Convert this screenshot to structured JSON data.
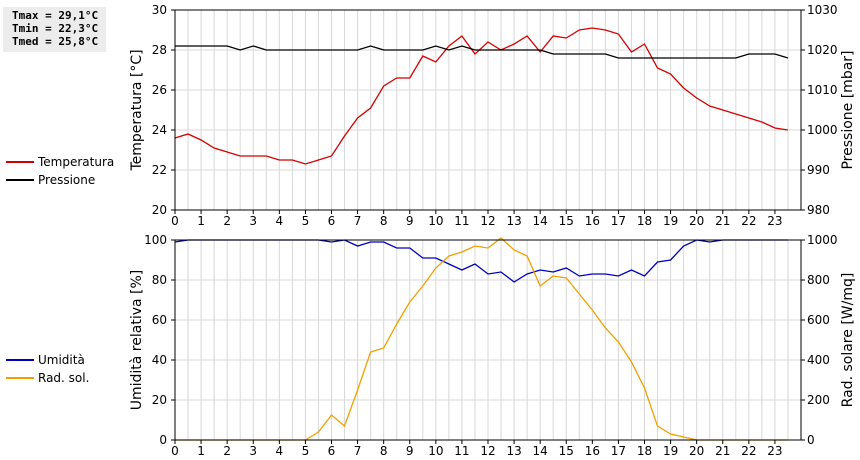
{
  "stats": {
    "tmax": "Tmax = 29,1°C",
    "tmin": "Tmin = 22,3°C",
    "tmed": "Tmed = 25,8°C"
  },
  "legend_top": [
    {
      "label": "Temperatura",
      "color": "#d40000"
    },
    {
      "label": "Pressione",
      "color": "#000000"
    }
  ],
  "legend_bottom": [
    {
      "label": "Umidità",
      "color": "#0000c0"
    },
    {
      "label": "Rad. sol.",
      "color": "#f0a000"
    }
  ],
  "chart_data": [
    {
      "type": "line",
      "ylabel_left": "Temperatura [°C]",
      "ylabel_right": "Pressione [mbar]",
      "ylim_left": [
        20,
        30
      ],
      "ylim_right": [
        980,
        1030
      ],
      "yticks_left": [
        "20",
        "22",
        "24",
        "26",
        "28",
        "30"
      ],
      "yticks_right": [
        "980",
        "990",
        "1000",
        "1010",
        "1020",
        "1030"
      ],
      "xlim": [
        0,
        24
      ],
      "xticks": [
        "0",
        "1",
        "2",
        "3",
        "4",
        "5",
        "6",
        "7",
        "8",
        "9",
        "10",
        "11",
        "12",
        "13",
        "14",
        "15",
        "16",
        "17",
        "18",
        "19",
        "20",
        "21",
        "22",
        "23"
      ],
      "grid": true,
      "series": [
        {
          "name": "Temperatura",
          "axis": "left",
          "color": "#d40000",
          "x": [
            0,
            0.5,
            1,
            1.5,
            2,
            2.5,
            3,
            3.5,
            4,
            4.5,
            5,
            5.5,
            6,
            6.5,
            7,
            7.5,
            8,
            8.5,
            9,
            9.5,
            10,
            10.5,
            11,
            11.5,
            12,
            12.5,
            13,
            13.5,
            14,
            14.5,
            15,
            15.5,
            16,
            16.5,
            17,
            17.5,
            18,
            18.5,
            19,
            19.5,
            20,
            20.5,
            21,
            21.5,
            22,
            22.5,
            23,
            23.5
          ],
          "y": [
            23.6,
            23.8,
            23.5,
            23.1,
            22.9,
            22.7,
            22.7,
            22.7,
            22.5,
            22.5,
            22.3,
            22.5,
            22.7,
            23.7,
            24.6,
            25.1,
            26.2,
            26.6,
            26.6,
            27.7,
            27.4,
            28.2,
            28.7,
            27.8,
            28.4,
            28.0,
            28.3,
            28.7,
            27.9,
            28.7,
            28.6,
            29.0,
            29.1,
            29.0,
            28.8,
            27.9,
            28.3,
            27.1,
            26.8,
            26.1,
            25.6,
            25.2,
            25.0,
            24.8,
            24.6,
            24.4,
            24.1,
            24.0
          ]
        },
        {
          "name": "Pressione",
          "axis": "right",
          "color": "#000000",
          "x": [
            0,
            0.5,
            1,
            1.5,
            2,
            2.5,
            3,
            3.5,
            4,
            4.5,
            5,
            5.5,
            6,
            6.5,
            7,
            7.5,
            8,
            8.5,
            9,
            9.5,
            10,
            10.5,
            11,
            11.5,
            12,
            12.5,
            13,
            13.5,
            14,
            14.5,
            15,
            15.5,
            16,
            16.5,
            17,
            17.5,
            18,
            18.5,
            19,
            19.5,
            20,
            20.5,
            21,
            21.5,
            22,
            22.5,
            23,
            23.5
          ],
          "y": [
            1021,
            1021,
            1021,
            1021,
            1021,
            1020,
            1021,
            1020,
            1020,
            1020,
            1020,
            1020,
            1020,
            1020,
            1020,
            1021,
            1020,
            1020,
            1020,
            1020,
            1021,
            1020,
            1021,
            1020,
            1020,
            1020,
            1020,
            1020,
            1020,
            1019,
            1019,
            1019,
            1019,
            1019,
            1018,
            1018,
            1018,
            1018,
            1018,
            1018,
            1018,
            1018,
            1018,
            1018,
            1019,
            1019,
            1019,
            1018
          ]
        }
      ]
    },
    {
      "type": "line",
      "ylabel_left": "Umidità relativa [%]",
      "ylabel_right": "Rad. solare [W/mq]",
      "ylim_left": [
        0,
        100
      ],
      "ylim_right": [
        0,
        1000
      ],
      "yticks_left": [
        "0",
        "20",
        "40",
        "60",
        "80",
        "100"
      ],
      "yticks_right": [
        "0",
        "200",
        "400",
        "600",
        "800",
        "1000"
      ],
      "xlim": [
        0,
        24
      ],
      "xticks": [
        "0",
        "1",
        "2",
        "3",
        "4",
        "5",
        "6",
        "7",
        "8",
        "9",
        "10",
        "11",
        "12",
        "13",
        "14",
        "15",
        "16",
        "17",
        "18",
        "19",
        "20",
        "21",
        "22",
        "23"
      ],
      "grid": true,
      "series": [
        {
          "name": "Umidità",
          "axis": "left",
          "color": "#0000c0",
          "x": [
            0,
            0.5,
            1,
            1.5,
            2,
            2.5,
            3,
            3.5,
            4,
            4.5,
            5,
            5.5,
            6,
            6.5,
            7,
            7.5,
            8,
            8.5,
            9,
            9.5,
            10,
            10.5,
            11,
            11.5,
            12,
            12.5,
            13,
            13.5,
            14,
            14.5,
            15,
            15.5,
            16,
            16.5,
            17,
            17.5,
            18,
            18.5,
            19,
            19.5,
            20,
            20.5,
            21,
            21.5,
            22,
            22.5,
            23,
            23.5
          ],
          "y": [
            99,
            100,
            100,
            100,
            100,
            100,
            100,
            100,
            100,
            100,
            100,
            100,
            99,
            100,
            97,
            99,
            99,
            96,
            96,
            91,
            91,
            88,
            85,
            88,
            83,
            84,
            79,
            83,
            85,
            84,
            86,
            82,
            83,
            83,
            82,
            85,
            82,
            89,
            90,
            97,
            100,
            99,
            100,
            100,
            100,
            100,
            100,
            100
          ]
        },
        {
          "name": "Rad. sol.",
          "axis": "right",
          "color": "#f0a000",
          "x": [
            0,
            0.5,
            1,
            1.5,
            2,
            2.5,
            3,
            3.5,
            4,
            4.5,
            5,
            5.5,
            6,
            6.5,
            7,
            7.5,
            8,
            8.5,
            9,
            9.5,
            10,
            10.5,
            11,
            11.5,
            12,
            12.5,
            13,
            13.5,
            14,
            14.5,
            15,
            15.5,
            16,
            16.5,
            17,
            17.5,
            18,
            18.5,
            19,
            19.5,
            20,
            20.5,
            21,
            21.5,
            22,
            22.5,
            23,
            23.5
          ],
          "y": [
            0,
            0,
            0,
            0,
            0,
            0,
            0,
            0,
            0,
            0,
            0,
            40,
            125,
            70,
            250,
            440,
            460,
            580,
            690,
            770,
            860,
            920,
            940,
            970,
            960,
            1010,
            950,
            920,
            770,
            820,
            810,
            730,
            650,
            560,
            490,
            390,
            260,
            70,
            30,
            15,
            0,
            0,
            0,
            0,
            0,
            0,
            0,
            0
          ]
        }
      ]
    }
  ]
}
